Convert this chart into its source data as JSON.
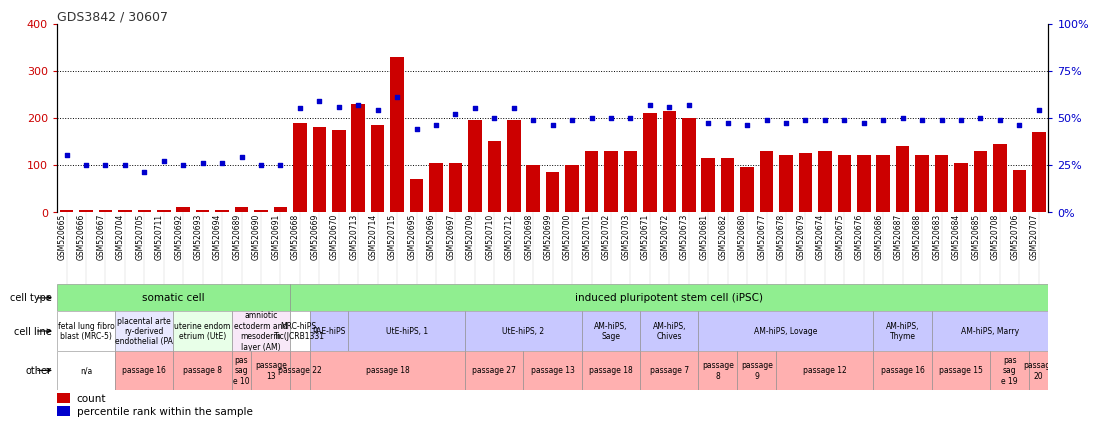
{
  "title": "GDS3842 / 30607",
  "samples": [
    "GSM520665",
    "GSM520666",
    "GSM520667",
    "GSM520704",
    "GSM520705",
    "GSM520711",
    "GSM520692",
    "GSM520693",
    "GSM520694",
    "GSM520689",
    "GSM520690",
    "GSM520691",
    "GSM520668",
    "GSM520669",
    "GSM520670",
    "GSM520713",
    "GSM520714",
    "GSM520715",
    "GSM520695",
    "GSM520696",
    "GSM520697",
    "GSM520709",
    "GSM520710",
    "GSM520712",
    "GSM520698",
    "GSM520699",
    "GSM520700",
    "GSM520701",
    "GSM520702",
    "GSM520703",
    "GSM520671",
    "GSM520672",
    "GSM520673",
    "GSM520681",
    "GSM520682",
    "GSM520680",
    "GSM520677",
    "GSM520678",
    "GSM520679",
    "GSM520674",
    "GSM520675",
    "GSM520676",
    "GSM520686",
    "GSM520687",
    "GSM520688",
    "GSM520683",
    "GSM520684",
    "GSM520685",
    "GSM520708",
    "GSM520706",
    "GSM520707"
  ],
  "counts": [
    5,
    5,
    5,
    5,
    5,
    5,
    10,
    5,
    5,
    10,
    5,
    10,
    190,
    180,
    175,
    230,
    185,
    330,
    70,
    105,
    105,
    195,
    150,
    195,
    100,
    85,
    100,
    130,
    130,
    130,
    210,
    215,
    200,
    115,
    115,
    95,
    130,
    120,
    125,
    130,
    120,
    120,
    120,
    140,
    120,
    120,
    105,
    130,
    145,
    90,
    170
  ],
  "percentiles_pct": [
    30,
    25,
    25,
    25,
    21,
    27,
    25,
    26,
    26,
    29,
    25,
    25,
    55,
    59,
    56,
    57,
    54,
    61,
    44,
    46,
    52,
    55,
    50,
    55,
    49,
    46,
    49,
    50,
    50,
    50,
    57,
    56,
    57,
    47,
    47,
    46,
    49,
    47,
    49,
    49,
    49,
    47,
    49,
    50,
    49,
    49,
    49,
    50,
    49,
    46,
    54
  ],
  "left_ylim": [
    0,
    400
  ],
  "right_ylim": [
    0,
    100
  ],
  "left_yticks": [
    0,
    100,
    200,
    300,
    400
  ],
  "right_yticks": [
    0,
    25,
    50,
    75,
    100
  ],
  "right_yticklabels": [
    "0%",
    "25%",
    "50%",
    "75%",
    "100%"
  ],
  "bar_color": "#cc0000",
  "dot_color": "#0000cc",
  "left_tick_color": "#cc0000",
  "right_tick_color": "#0000cc",
  "cell_type_groups": [
    {
      "label": "somatic cell",
      "start": 0,
      "end": 12,
      "color": "#90ee90"
    },
    {
      "label": "induced pluripotent stem cell (iPSC)",
      "start": 12,
      "end": 51,
      "color": "#90ee90"
    }
  ],
  "cell_line_groups": [
    {
      "label": "fetal lung fibro\nblast (MRC-5)",
      "start": 0,
      "end": 3,
      "color": "#ffffff"
    },
    {
      "label": "placental arte\nry-derived\nendothelial (PA",
      "start": 3,
      "end": 6,
      "color": "#e8e8ff"
    },
    {
      "label": "uterine endom\netrium (UtE)",
      "start": 6,
      "end": 9,
      "color": "#e8ffe8"
    },
    {
      "label": "amniotic\nectoderm and\nmesoderm\nlayer (AM)",
      "start": 9,
      "end": 12,
      "color": "#f8e8f8"
    },
    {
      "label": "MRC-hiPS,\nTic(JCRB1331",
      "start": 12,
      "end": 13,
      "color": "#ffffff"
    },
    {
      "label": "PAE-hiPS",
      "start": 13,
      "end": 15,
      "color": "#c8c8ff"
    },
    {
      "label": "UtE-hiPS, 1",
      "start": 15,
      "end": 21,
      "color": "#c8c8ff"
    },
    {
      "label": "UtE-hiPS, 2",
      "start": 21,
      "end": 27,
      "color": "#c8c8ff"
    },
    {
      "label": "AM-hiPS,\nSage",
      "start": 27,
      "end": 30,
      "color": "#c8c8ff"
    },
    {
      "label": "AM-hiPS,\nChives",
      "start": 30,
      "end": 33,
      "color": "#c8c8ff"
    },
    {
      "label": "AM-hiPS, Lovage",
      "start": 33,
      "end": 42,
      "color": "#c8c8ff"
    },
    {
      "label": "AM-hiPS,\nThyme",
      "start": 42,
      "end": 45,
      "color": "#c8c8ff"
    },
    {
      "label": "AM-hiPS, Marry",
      "start": 45,
      "end": 51,
      "color": "#c8c8ff"
    }
  ],
  "other_groups": [
    {
      "label": "n/a",
      "start": 0,
      "end": 3,
      "color": "#ffffff"
    },
    {
      "label": "passage 16",
      "start": 3,
      "end": 6,
      "color": "#ffb0b0"
    },
    {
      "label": "passage 8",
      "start": 6,
      "end": 9,
      "color": "#ffb0b0"
    },
    {
      "label": "pas\nsag\ne 10",
      "start": 9,
      "end": 10,
      "color": "#ffb0b0"
    },
    {
      "label": "passage\n13",
      "start": 10,
      "end": 12,
      "color": "#ffb0b0"
    },
    {
      "label": "passage 22",
      "start": 12,
      "end": 13,
      "color": "#ffb0b0"
    },
    {
      "label": "passage 18",
      "start": 13,
      "end": 21,
      "color": "#ffb0b0"
    },
    {
      "label": "passage 27",
      "start": 21,
      "end": 24,
      "color": "#ffb0b0"
    },
    {
      "label": "passage 13",
      "start": 24,
      "end": 27,
      "color": "#ffb0b0"
    },
    {
      "label": "passage 18",
      "start": 27,
      "end": 30,
      "color": "#ffb0b0"
    },
    {
      "label": "passage 7",
      "start": 30,
      "end": 33,
      "color": "#ffb0b0"
    },
    {
      "label": "passage\n8",
      "start": 33,
      "end": 35,
      "color": "#ffb0b0"
    },
    {
      "label": "passage\n9",
      "start": 35,
      "end": 37,
      "color": "#ffb0b0"
    },
    {
      "label": "passage 12",
      "start": 37,
      "end": 42,
      "color": "#ffb0b0"
    },
    {
      "label": "passage 16",
      "start": 42,
      "end": 45,
      "color": "#ffb0b0"
    },
    {
      "label": "passage 15",
      "start": 45,
      "end": 48,
      "color": "#ffb0b0"
    },
    {
      "label": "pas\nsag\ne 19",
      "start": 48,
      "end": 50,
      "color": "#ffb0b0"
    },
    {
      "label": "passage\n20",
      "start": 50,
      "end": 51,
      "color": "#ffb0b0"
    }
  ]
}
